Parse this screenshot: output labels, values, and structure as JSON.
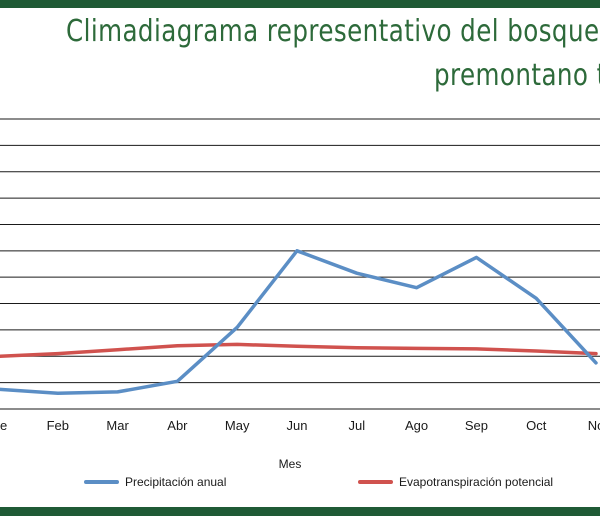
{
  "colors": {
    "band": "#1f5a35",
    "title": "#2d6a3a",
    "grid": "#1a1a1a",
    "precipitation": "#5b8ec5",
    "evapotranspiration": "#d0524e"
  },
  "chart_data": {
    "type": "line",
    "title_line1": "Climadiagrama representativo del bosque h",
    "title_line2": "premontano t",
    "xlabel": "Mes",
    "ylabel": "",
    "categories": [
      "e",
      "Feb",
      "Mar",
      "Abr",
      "May",
      "Jun",
      "Jul",
      "Ago",
      "Sep",
      "Oct",
      "No"
    ],
    "ylim": [
      0,
      11
    ],
    "gridlines": 11,
    "grid": true,
    "legend_position": "bottom",
    "series": [
      {
        "name": "Precipitación anual",
        "values": [
          0.75,
          0.6,
          0.65,
          1.05,
          3.1,
          6.0,
          5.15,
          4.6,
          5.75,
          4.2,
          1.75
        ]
      },
      {
        "name": "Evapotranspiración potencial",
        "values": [
          2.0,
          2.1,
          2.25,
          2.4,
          2.45,
          2.38,
          2.32,
          2.3,
          2.28,
          2.2,
          2.1
        ]
      }
    ]
  }
}
